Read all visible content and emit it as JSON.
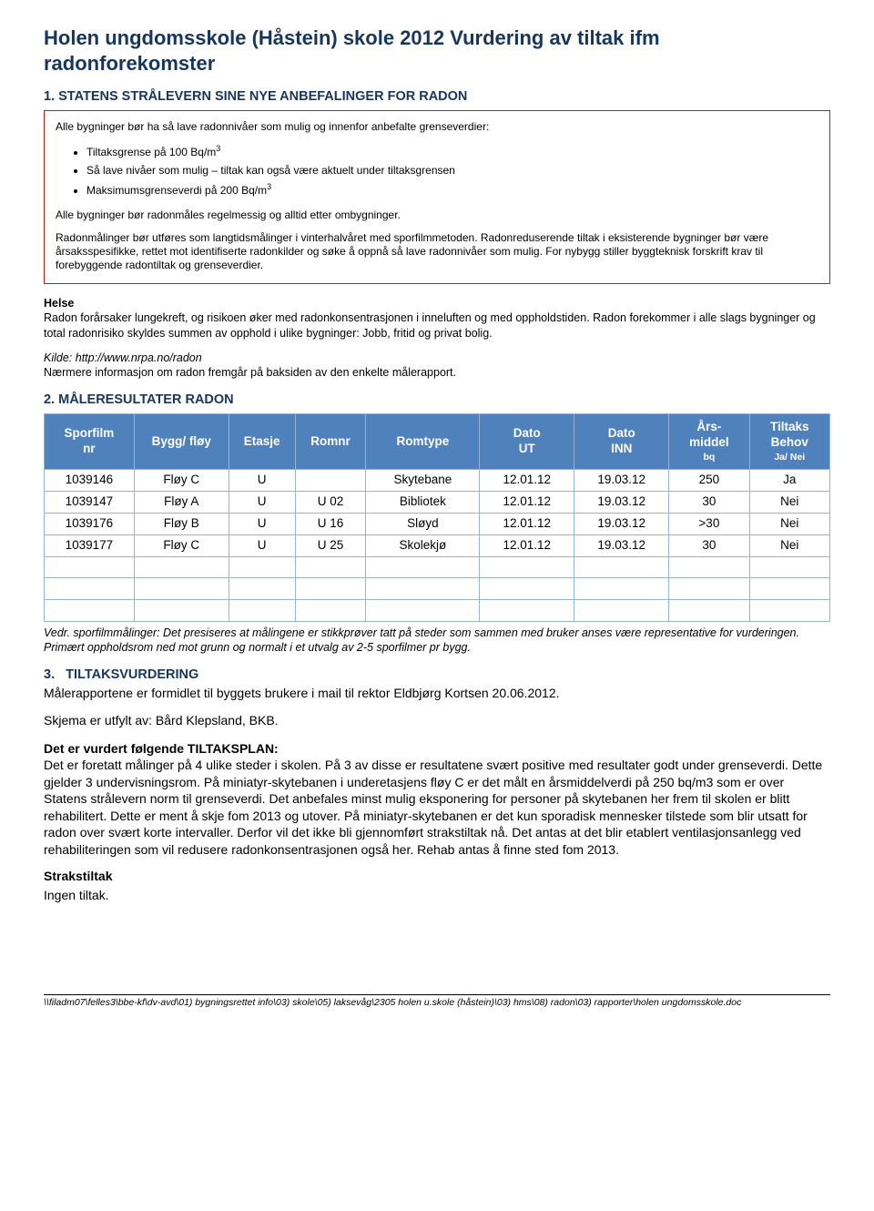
{
  "title": {
    "part1": "Holen ungdomsskole (Håstein) skole 2012",
    "part2": "Vurdering av tiltak ifm radonforekomster"
  },
  "section1": {
    "heading": "1. STATENS STRÅLEVERN SINE NYE ANBEFALINGER FOR RADON",
    "intro": "Alle bygninger bør ha så lave radonnivåer som mulig og innenfor anbefalte grenseverdier:",
    "bullets": [
      "Tiltaksgrense på 100 Bq/m",
      "Så lave nivåer som mulig – tiltak kan også være aktuelt under tiltaksgrensen",
      "Maksimumsgrenseverdi på 200 Bq/m"
    ],
    "sup": "3",
    "after_bullets": "Alle bygninger bør radonmåles regelmessig og alltid etter ombygninger.",
    "para2": "Radonmålinger bør utføres som langtidsmålinger i vinterhalvåret med sporfilmmetoden. Radonreduserende tiltak i eksisterende bygninger bør være årsaksspesifikke, rettet mot identifiserte radonkilder og søke å oppnå så lave radonnivåer som mulig. For nybygg stiller byggteknisk forskrift krav til forebyggende radontiltak og grenseverdier."
  },
  "helse": {
    "label": "Helse",
    "body": "Radon forårsaker lungekreft, og risikoen øker med radonkonsentrasjonen i inneluften og med oppholdstiden. Radon forekommer i alle slags bygninger og total radonrisiko skyldes summen av opphold i ulike bygninger: Jobb, fritid og privat bolig."
  },
  "kilde": {
    "label": "Kilde: http://www.nrpa.no/radon",
    "desc": "Nærmere informasjon om radon fremgår på baksiden av den enkelte målerapport."
  },
  "section2": {
    "heading": "2. MÅLERESULTATER RADON",
    "columns": [
      {
        "line1": "Sporfilm",
        "line2": "nr"
      },
      {
        "line1": "Bygg/ fløy",
        "line2": ""
      },
      {
        "line1": "Etasje",
        "line2": ""
      },
      {
        "line1": "Romnr",
        "line2": ""
      },
      {
        "line1": "Romtype",
        "line2": ""
      },
      {
        "line1": "Dato",
        "line2": "UT"
      },
      {
        "line1": "Dato",
        "line2": "INN"
      },
      {
        "line1": "Års-",
        "line2": "middel",
        "line3": "bq"
      },
      {
        "line1": "Tiltaks",
        "line2": "Behov",
        "line3": "Ja/ Nei"
      }
    ],
    "rows": [
      [
        "1039146",
        "Fløy C",
        "U",
        "",
        "Skytebane",
        "12.01.12",
        "19.03.12",
        "250",
        "Ja"
      ],
      [
        "1039147",
        "Fløy A",
        "U",
        "U 02",
        "Bibliotek",
        "12.01.12",
        "19.03.12",
        "30",
        "Nei"
      ],
      [
        "1039176",
        "Fløy B",
        "U",
        "U 16",
        "Sløyd",
        "12.01.12",
        "19.03.12",
        ">30",
        "Nei"
      ],
      [
        "1039177",
        "Fløy C",
        "U",
        "U 25",
        "Skolekjø",
        "12.01.12",
        "19.03.12",
        "30",
        "Nei"
      ]
    ],
    "blank_rows": 3,
    "col_widths": [
      "95px",
      "100px",
      "70px",
      "75px",
      "120px",
      "100px",
      "100px",
      "85px",
      "85px"
    ],
    "note": "Vedr. sporfilmmålinger: Det presiseres at målingene er stikkprøver tatt på steder som sammen med bruker anses være representative for vurderingen. Primært oppholdsrom ned mot grunn og normalt i et utvalg av 2-5 sporfilmer pr bygg."
  },
  "section3": {
    "heading": "3.   TILTAKSVURDERING",
    "p1": "Målerapportene er formidlet til byggets brukere i mail til rektor Eldbjørg Kortsen 20.06.2012.",
    "p2": "Skjema er utfylt av: Bård Klepsland, BKB.",
    "plan_label": "Det er vurdert følgende TILTAKSPLAN:",
    "plan_body": "Det er foretatt målinger på 4 ulike steder i skolen. På 3 av disse er resultatene svært positive med resultater godt under grenseverdi. Dette gjelder 3 undervisningsrom. På miniatyr-skytebanen i underetasjens fløy C er det målt en årsmiddelverdi på 250 bq/m3 som er over Statens strålevern norm til grenseverdi. Det anbefales minst mulig eksponering for personer på skytebanen her frem til skolen er blitt rehabilitert. Dette er ment å skje fom 2013 og utover. På miniatyr-skytebanen er det kun sporadisk mennesker tilstede som blir utsatt for radon over svært korte intervaller. Derfor vil det ikke bli gjennomført strakstiltak nå. Det antas at det blir etablert ventilasjonsanlegg ved rehabiliteringen som vil redusere radonkonsentrasjonen også her. Rehab antas å finne sted fom 2013.",
    "strak_label": "Strakstiltak",
    "strak_body": "Ingen tiltak."
  },
  "footer": {
    "line1": "\\\\filadm07\\felles3\\bbe-kf\\dv-avd\\01) bygningsrettet info\\03) skole\\05) laksevåg\\2305 holen u.skole (håstein)\\03) hms\\08) radon\\03) rapporter\\holen ungdomsskole.doc"
  },
  "colors": {
    "heading": "#17365d",
    "box_border": "#b02318",
    "th_bg": "#4f81bd",
    "td_border": "#95b3d7",
    "th_text": "#ffffff",
    "text": "#000000",
    "bg": "#ffffff"
  }
}
